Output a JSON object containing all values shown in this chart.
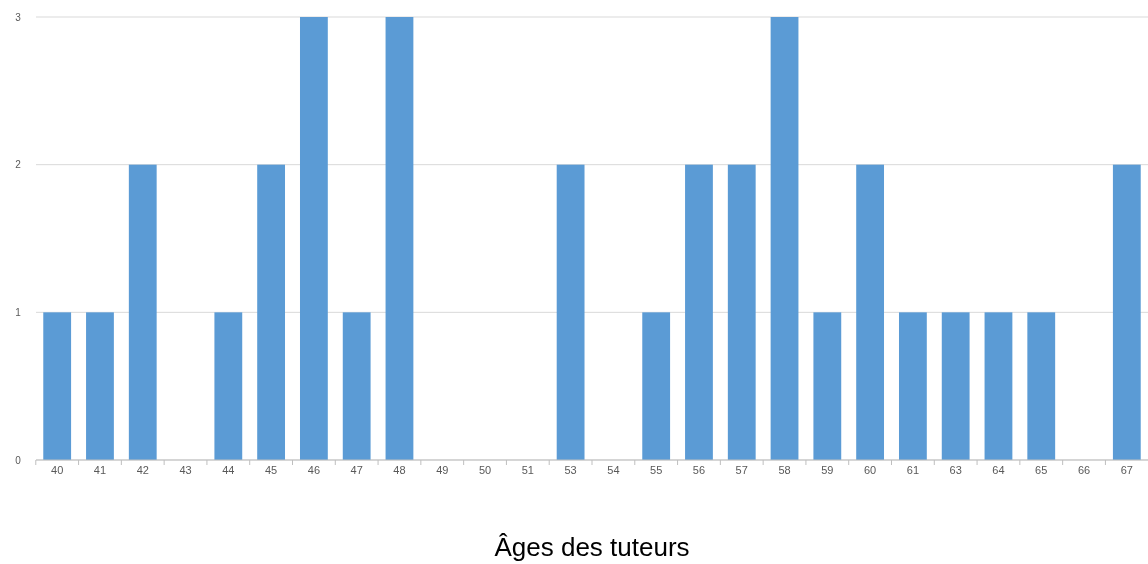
{
  "chart_data": {
    "type": "bar",
    "xlabel": "Âges des tuteurs",
    "categories": [
      "40",
      "41",
      "42",
      "43",
      "44",
      "45",
      "46",
      "47",
      "48",
      "49",
      "50",
      "51",
      "53",
      "54",
      "55",
      "56",
      "57",
      "58",
      "59",
      "60",
      "61",
      "63",
      "64",
      "65",
      "66",
      "67"
    ],
    "values": [
      1,
      1,
      2,
      0,
      1,
      2,
      3,
      1,
      3,
      0,
      0,
      0,
      2,
      0,
      1,
      2,
      2,
      3,
      1,
      2,
      1,
      1,
      1,
      1,
      0,
      2
    ],
    "color": "#5b9bd5",
    "ylim": [
      0,
      3
    ],
    "yticks": [
      0,
      1,
      2,
      3
    ],
    "grid": "y"
  }
}
